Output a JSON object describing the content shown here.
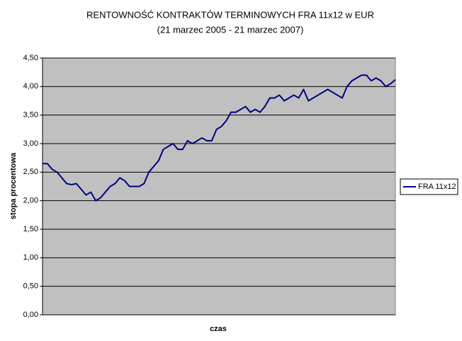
{
  "chart_data": {
    "type": "line",
    "title": "RENTOWNOŚĆ KONTRAKTÓW TERMINOWYCH FRA 11x12 w EUR",
    "subtitle": "(21 marzec 2005 - 21 marzec 2007)",
    "x_label": "czas",
    "y_label": "stopa procentowa",
    "categories": [
      null,
      null,
      null,
      null,
      null,
      null,
      null,
      null,
      null,
      null,
      null,
      null,
      null,
      null,
      null,
      null,
      null,
      null,
      null,
      null,
      null,
      null,
      null,
      null,
      null,
      null,
      null,
      null,
      null,
      null,
      null,
      null,
      null,
      null,
      null,
      null,
      null,
      null,
      null,
      null,
      null,
      null,
      null,
      null,
      null,
      null,
      null,
      null,
      null,
      null,
      null,
      null,
      null,
      null,
      null,
      null,
      null,
      null,
      null,
      null,
      null,
      null,
      null,
      null,
      null,
      null,
      null,
      null,
      null,
      null,
      null,
      null,
      null,
      null
    ],
    "series": [
      {
        "name": "FRA 11x12",
        "color": "#000080",
        "values": [
          2.65,
          2.65,
          2.55,
          2.5,
          2.4,
          2.3,
          2.28,
          2.3,
          2.2,
          2.1,
          2.15,
          2.0,
          2.05,
          2.15,
          2.25,
          2.3,
          2.4,
          2.35,
          2.25,
          2.25,
          2.25,
          2.3,
          2.5,
          2.6,
          2.7,
          2.9,
          2.95,
          3.0,
          2.9,
          2.9,
          3.05,
          3.0,
          3.05,
          3.1,
          3.05,
          3.05,
          3.25,
          3.3,
          3.4,
          3.55,
          3.55,
          3.6,
          3.65,
          3.55,
          3.6,
          3.55,
          3.65,
          3.8,
          3.8,
          3.85,
          3.75,
          3.8,
          3.85,
          3.8,
          3.95,
          3.75,
          3.8,
          3.85,
          3.9,
          3.95,
          3.9,
          3.85,
          3.8,
          4.0,
          4.1,
          4.15,
          4.2,
          4.2,
          4.1,
          4.15,
          4.1,
          4.0,
          4.05,
          4.12
        ]
      }
    ],
    "ylim": [
      0,
      4.5
    ],
    "yticks": [
      {
        "value": 0,
        "label": "0,00"
      },
      {
        "value": 0.5,
        "label": "0,50"
      },
      {
        "value": 1,
        "label": "1,00"
      },
      {
        "value": 1.5,
        "label": "1,50"
      },
      {
        "value": 2,
        "label": "2,00"
      },
      {
        "value": 2.5,
        "label": "2,50"
      },
      {
        "value": 3,
        "label": "3,00"
      },
      {
        "value": 3.5,
        "label": "3,50"
      },
      {
        "value": 4,
        "label": "4,00"
      },
      {
        "value": 4.5,
        "label": "4,50"
      }
    ],
    "grid": true,
    "legend": "right",
    "background": "#c0c0c0"
  }
}
